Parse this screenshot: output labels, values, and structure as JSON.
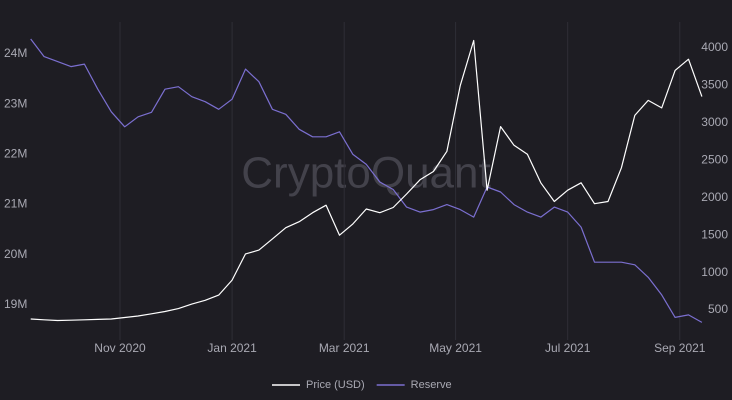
{
  "chart_data": {
    "type": "line",
    "watermark": "CryptoQuant",
    "x": [
      2020.7,
      2020.72,
      2020.74,
      2020.76,
      2020.78,
      2020.8,
      2020.82,
      2020.84,
      2020.86,
      2020.88,
      2020.9,
      2020.92,
      2020.94,
      2020.96,
      2020.98,
      2021.0,
      2021.02,
      2021.04,
      2021.06,
      2021.08,
      2021.1,
      2021.12,
      2021.14,
      2021.16,
      2021.18,
      2021.2,
      2021.22,
      2021.24,
      2021.26,
      2021.28,
      2021.3,
      2021.32,
      2021.34,
      2021.36,
      2021.38,
      2021.4,
      2021.42,
      2021.44,
      2021.46,
      2021.48,
      2021.5,
      2021.52,
      2021.54,
      2021.56,
      2021.58,
      2021.6,
      2021.62,
      2021.64,
      2021.66,
      2021.68,
      2021.7
    ],
    "series": [
      {
        "name": "Price (USD)",
        "color": "#ffffff",
        "axis": "y2",
        "values": [
          380,
          370,
          360,
          365,
          370,
          375,
          380,
          400,
          420,
          450,
          480,
          520,
          580,
          630,
          700,
          900,
          1250,
          1300,
          1450,
          1600,
          1680,
          1800,
          1900,
          1500,
          1650,
          1850,
          1800,
          1870,
          2050,
          2240,
          2350,
          2620,
          3500,
          4100,
          2100,
          2950,
          2700,
          2580,
          2200,
          1950,
          2100,
          2200,
          1920,
          1950,
          2400,
          3100,
          3300,
          3200,
          3700,
          3850,
          3350
        ]
      },
      {
        "name": "Reserve",
        "color": "#7b6fd0",
        "values": [
          24300000,
          23950000,
          23850000,
          23750000,
          23800000,
          23300000,
          22850000,
          22550000,
          22750000,
          22840000,
          23300000,
          23350000,
          23150000,
          23050000,
          22900000,
          23100000,
          23700000,
          23450000,
          22900000,
          22800000,
          22500000,
          22350000,
          22350000,
          22450000,
          22000000,
          21800000,
          21450000,
          21300000,
          20950000,
          20850000,
          20900000,
          21000000,
          20900000,
          20750000,
          21350000,
          21250000,
          21000000,
          20850000,
          20750000,
          20950000,
          20850000,
          20550000,
          19850000,
          19850000,
          19850000,
          19800000,
          19550000,
          19200000,
          18750000,
          18800000,
          18650000
        ]
      }
    ],
    "xlim": [
      2020.687,
      2021.715
    ],
    "xticks": [
      {
        "value": 2020.833,
        "label": "Nov 2020"
      },
      {
        "value": 2021.0,
        "label": "Jan 2021"
      },
      {
        "value": 2021.167,
        "label": "Mar 2021"
      },
      {
        "value": 2021.333,
        "label": "May 2021"
      },
      {
        "value": 2021.5,
        "label": "Jul 2021"
      },
      {
        "value": 2021.667,
        "label": "Sep 2021"
      }
    ],
    "ylim": [
      18300000,
      24480000
    ],
    "yticks": [
      {
        "value": 19000000,
        "label": "19M"
      },
      {
        "value": 20000000,
        "label": "20M"
      },
      {
        "value": 21000000,
        "label": "21M"
      },
      {
        "value": 22000000,
        "label": "22M"
      },
      {
        "value": 23000000,
        "label": "23M"
      },
      {
        "value": 24000000,
        "label": "24M"
      }
    ],
    "y2lim": [
      100,
      4240
    ],
    "y2ticks": [
      500,
      1000,
      1500,
      2000,
      2500,
      3000,
      3500,
      4000
    ],
    "grid": true,
    "legend": "bottom"
  }
}
